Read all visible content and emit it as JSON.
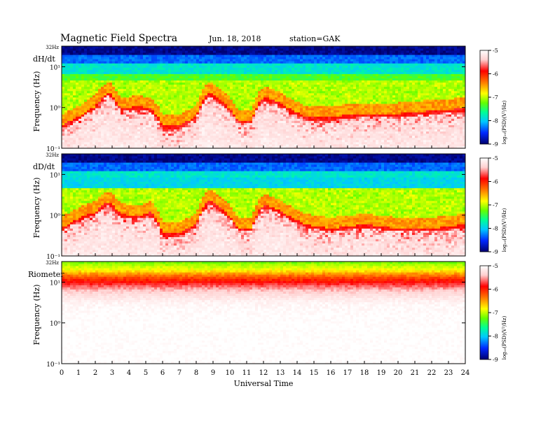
{
  "header": {
    "title": "Magnetic  Field  Spectra",
    "date": "Jun. 18, 2018",
    "station": "station=GAK"
  },
  "x_axis": {
    "label": "Universal Time",
    "ticks": [
      "0",
      "1",
      "2",
      "3",
      "4",
      "5",
      "6",
      "7",
      "8",
      "9",
      "10",
      "11",
      "12",
      "13",
      "14",
      "15",
      "16",
      "17",
      "18",
      "19",
      "20",
      "21",
      "22",
      "23",
      "24"
    ]
  },
  "colorbar": {
    "label": "log₁₀(PSD)(V²/Hz)",
    "ticks": [
      "-5",
      "-6",
      "-7",
      "-8",
      "-9"
    ]
  },
  "colors": {
    "scale": [
      "#00006e",
      "#0018ff",
      "#00c8ff",
      "#00ff96",
      "#32ff00",
      "#d2ff00",
      "#ffd200",
      "#ff6400",
      "#ff0000",
      "#ffe6e6",
      "#ffffff"
    ]
  },
  "panels": [
    {
      "id": "dHdt",
      "label": "dH/dt",
      "ylabel": "Frequency (Hz)",
      "top_label": "32Hz",
      "yticks": [
        "10¹",
        "10⁰",
        "10⁻¹"
      ]
    },
    {
      "id": "dDdt",
      "label": "dD/dt",
      "ylabel": "Frequency (Hz)",
      "top_label": "32Hz",
      "yticks": [
        "10¹",
        "10⁰",
        "10⁻¹"
      ]
    },
    {
      "id": "riometer",
      "label": "Riometer",
      "ylabel": "Frequency (Hz)",
      "top_label": "32Hz",
      "yticks": [
        "10¹",
        "10⁰",
        "10⁻¹"
      ]
    }
  ],
  "chart_data": [
    {
      "type": "heatmap",
      "title": "dH/dt",
      "xlabel": "Universal Time",
      "ylabel": "Frequency (Hz)",
      "xlim": [
        0,
        24
      ],
      "ylim": [
        0.1,
        32
      ],
      "yscale": "log",
      "colorbar_label": "log₁₀(PSD)(V²/Hz)",
      "zlim": [
        -9,
        -5
      ],
      "description_points": {
        "times": [
          0,
          1,
          2,
          2.8,
          3.5,
          4.5,
          5.3,
          6,
          7,
          8,
          8.8,
          9.5,
          10.5,
          11.3,
          12,
          12.8,
          13.5,
          14.5,
          16,
          18,
          20,
          22,
          24
        ],
        "low_freq_red_edge_hz": [
          0.3,
          0.5,
          0.9,
          2.0,
          0.8,
          0.9,
          0.8,
          0.3,
          0.3,
          0.5,
          2.0,
          1.2,
          0.4,
          0.4,
          1.5,
          1.2,
          0.8,
          0.5,
          0.5,
          0.6,
          0.6,
          0.7,
          0.8
        ]
      }
    },
    {
      "type": "heatmap",
      "title": "dD/dt",
      "xlabel": "Universal Time",
      "ylabel": "Frequency (Hz)",
      "xlim": [
        0,
        24
      ],
      "ylim": [
        0.1,
        32
      ],
      "yscale": "log",
      "colorbar_label": "log₁₀(PSD)(V²/Hz)",
      "zlim": [
        -9,
        -5
      ],
      "description_points": {
        "times": [
          0,
          1,
          2,
          2.8,
          3.5,
          4.5,
          5.3,
          6,
          7,
          8,
          8.8,
          9.5,
          10.5,
          11.3,
          12,
          12.8,
          13.5,
          14.5,
          16,
          18,
          20,
          22,
          24
        ],
        "low_freq_red_edge_hz": [
          0.4,
          0.7,
          1.0,
          1.8,
          0.9,
          0.8,
          1.0,
          0.3,
          0.3,
          0.5,
          2.0,
          1.2,
          0.4,
          0.4,
          1.5,
          1.2,
          0.8,
          0.5,
          0.4,
          0.5,
          0.4,
          0.4,
          0.5
        ]
      }
    },
    {
      "type": "heatmap",
      "title": "Riometer",
      "xlabel": "Universal Time",
      "ylabel": "Frequency (Hz)",
      "xlim": [
        0,
        24
      ],
      "ylim": [
        0.1,
        32
      ],
      "yscale": "log",
      "colorbar_label": "log₁₀(PSD)(V²/Hz)",
      "zlim": [
        -9,
        -5
      ],
      "description_points": {
        "band_hz": [
          {
            "f": 32,
            "z": -7.2
          },
          {
            "f": 20,
            "z": -6.8
          },
          {
            "f": 15,
            "z": -6.4
          },
          {
            "f": 10,
            "z": -6.0
          },
          {
            "f": 6,
            "z": -5.5
          },
          {
            "f": 3,
            "z": -5.1
          },
          {
            "f": 1,
            "z": -5.0
          },
          {
            "f": 0.1,
            "z": -5.0
          }
        ]
      }
    }
  ]
}
